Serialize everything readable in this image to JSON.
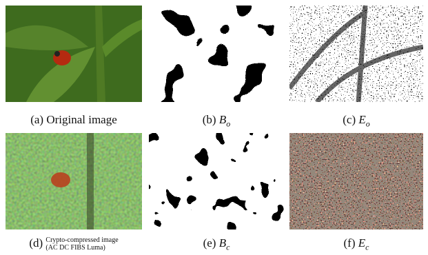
{
  "panels": [
    {
      "tag": "(a)",
      "caption": "Original image"
    },
    {
      "tag": "(b)",
      "symbol": "B",
      "subscript": "o"
    },
    {
      "tag": "(c)",
      "symbol": "E",
      "subscript": "o"
    },
    {
      "tag": "(d)",
      "caption_lines": [
        "Crypto-compressed image",
        "(AC DC FIBS Luma)"
      ]
    },
    {
      "tag": "(e)",
      "symbol": "B",
      "subscript": "c"
    },
    {
      "tag": "(f)",
      "symbol": "E",
      "subscript": "c"
    }
  ]
}
